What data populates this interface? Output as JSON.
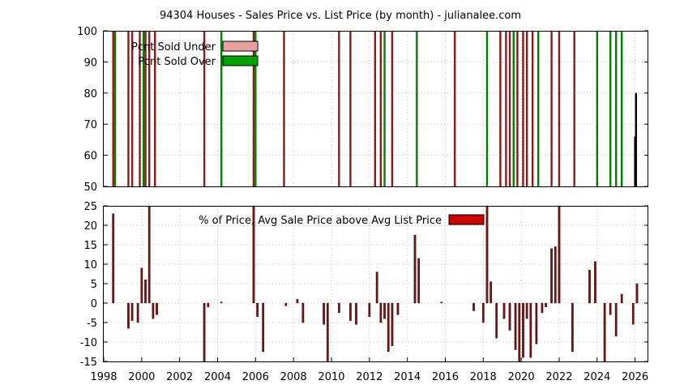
{
  "chart_data": [
    {
      "panel": "top",
      "type": "bar",
      "title": "94304 Houses - Sales Price vs. List Price (by month) - julianalee.com",
      "xlabel": "",
      "ylabel": "",
      "xlim": [
        1998,
        2026.7
      ],
      "ylim": [
        50,
        100
      ],
      "yticks": [
        50,
        60,
        70,
        80,
        90,
        100
      ],
      "grid": true,
      "legend_placement": "top-left",
      "legend": [
        {
          "label": "Pcnt Sold Under",
          "color": "#e8a0a0"
        },
        {
          "label": "Pcnt Sold Over",
          "color": "#00a000"
        }
      ],
      "series": [
        {
          "name": "Pcnt Sold Under",
          "color": "#8b1a1a",
          "x": [
            1998.5,
            1999.3,
            1999.5,
            1999.9,
            2000.2,
            2000.4,
            2000.7,
            2003.3,
            2005.9,
            2007.5,
            2010.4,
            2011.0,
            2012.3,
            2012.6,
            2013.2,
            2016.5,
            2018.9,
            2019.2,
            2019.4,
            2019.8,
            2020.1,
            2020.3,
            2020.6,
            2021.6,
            2022.0,
            2022.8
          ],
          "values": [
            100,
            100,
            100,
            100,
            100,
            100,
            100,
            100,
            100,
            100,
            100,
            100,
            100,
            100,
            100,
            100,
            100,
            100,
            100,
            100,
            100,
            100,
            100,
            100,
            100,
            100
          ]
        },
        {
          "name": "Pcnt Sold Over",
          "color": "#008000",
          "x": [
            1998.6,
            2000.1,
            2004.2,
            2006.0,
            2012.8,
            2014.5,
            2018.2,
            2019.6,
            2020.9,
            2024.0,
            2024.7,
            2025.0,
            2025.3
          ],
          "values": [
            100,
            100,
            100,
            100,
            100,
            100,
            100,
            100,
            100,
            100,
            100,
            100,
            100
          ]
        },
        {
          "name": "",
          "color": "#000000",
          "x": [
            2026.0,
            2026.05
          ],
          "values": [
            66,
            80
          ]
        }
      ]
    },
    {
      "panel": "bottom",
      "type": "bar",
      "title": "",
      "xlabel": "",
      "ylabel": "",
      "xlim": [
        1998,
        2026.7
      ],
      "ylim": [
        -15,
        25
      ],
      "yticks": [
        -15,
        -10,
        -5,
        0,
        5,
        10,
        15,
        20,
        25
      ],
      "xticks": [
        "1998",
        "2000",
        "2002",
        "2004",
        "2006",
        "2008",
        "2010",
        "2012",
        "2014",
        "2016",
        "2018",
        "2020",
        "2022",
        "2024",
        "2026"
      ],
      "grid": true,
      "legend_placement": "top-center",
      "legend": [
        {
          "label": "% of Price, Avg Sale Price above Avg List Price",
          "color": "#cc0000"
        }
      ],
      "series": [
        {
          "name": "% of Price, Avg Sale Price above Avg List Price",
          "color": "#7a1010",
          "x": [
            1998.5,
            1999.3,
            1999.5,
            1999.8,
            2000.0,
            2000.2,
            2000.4,
            2000.6,
            2000.8,
            2003.3,
            2003.5,
            2004.2,
            2005.9,
            2006.1,
            2006.4,
            2007.6,
            2008.2,
            2008.5,
            2009.6,
            2009.8,
            2010.4,
            2011.0,
            2011.3,
            2012.0,
            2012.4,
            2012.6,
            2012.8,
            2013.0,
            2013.2,
            2013.5,
            2014.4,
            2014.6,
            2015.8,
            2017.5,
            2018.0,
            2018.2,
            2018.4,
            2018.7,
            2019.1,
            2019.4,
            2019.7,
            2019.9,
            2020.1,
            2020.3,
            2020.5,
            2020.8,
            2021.1,
            2021.3,
            2021.6,
            2021.8,
            2022.0,
            2022.7,
            2023.6,
            2023.9,
            2024.4,
            2024.7,
            2025.0,
            2025.3,
            2025.9,
            2026.1
          ],
          "values": [
            23,
            -6.5,
            -4.5,
            -5,
            9,
            6,
            25,
            -4,
            -3,
            -15,
            -1,
            0.3,
            25,
            -3.5,
            -12.5,
            -0.7,
            1,
            -5,
            -5.5,
            -15,
            -2.5,
            -4.5,
            -5.5,
            -3.5,
            8,
            -5,
            -4,
            -12.5,
            -11,
            -3,
            17.5,
            11.5,
            0.3,
            -2,
            -5,
            25,
            5.5,
            -9,
            -4,
            -7,
            -12,
            -15,
            -14,
            -4,
            -14,
            -10.5,
            -2.5,
            -1,
            14,
            14.5,
            25,
            -12.5,
            8.5,
            10.7,
            -15,
            -3,
            -8.5,
            2.3,
            -5.5,
            5
          ]
        }
      ]
    }
  ]
}
